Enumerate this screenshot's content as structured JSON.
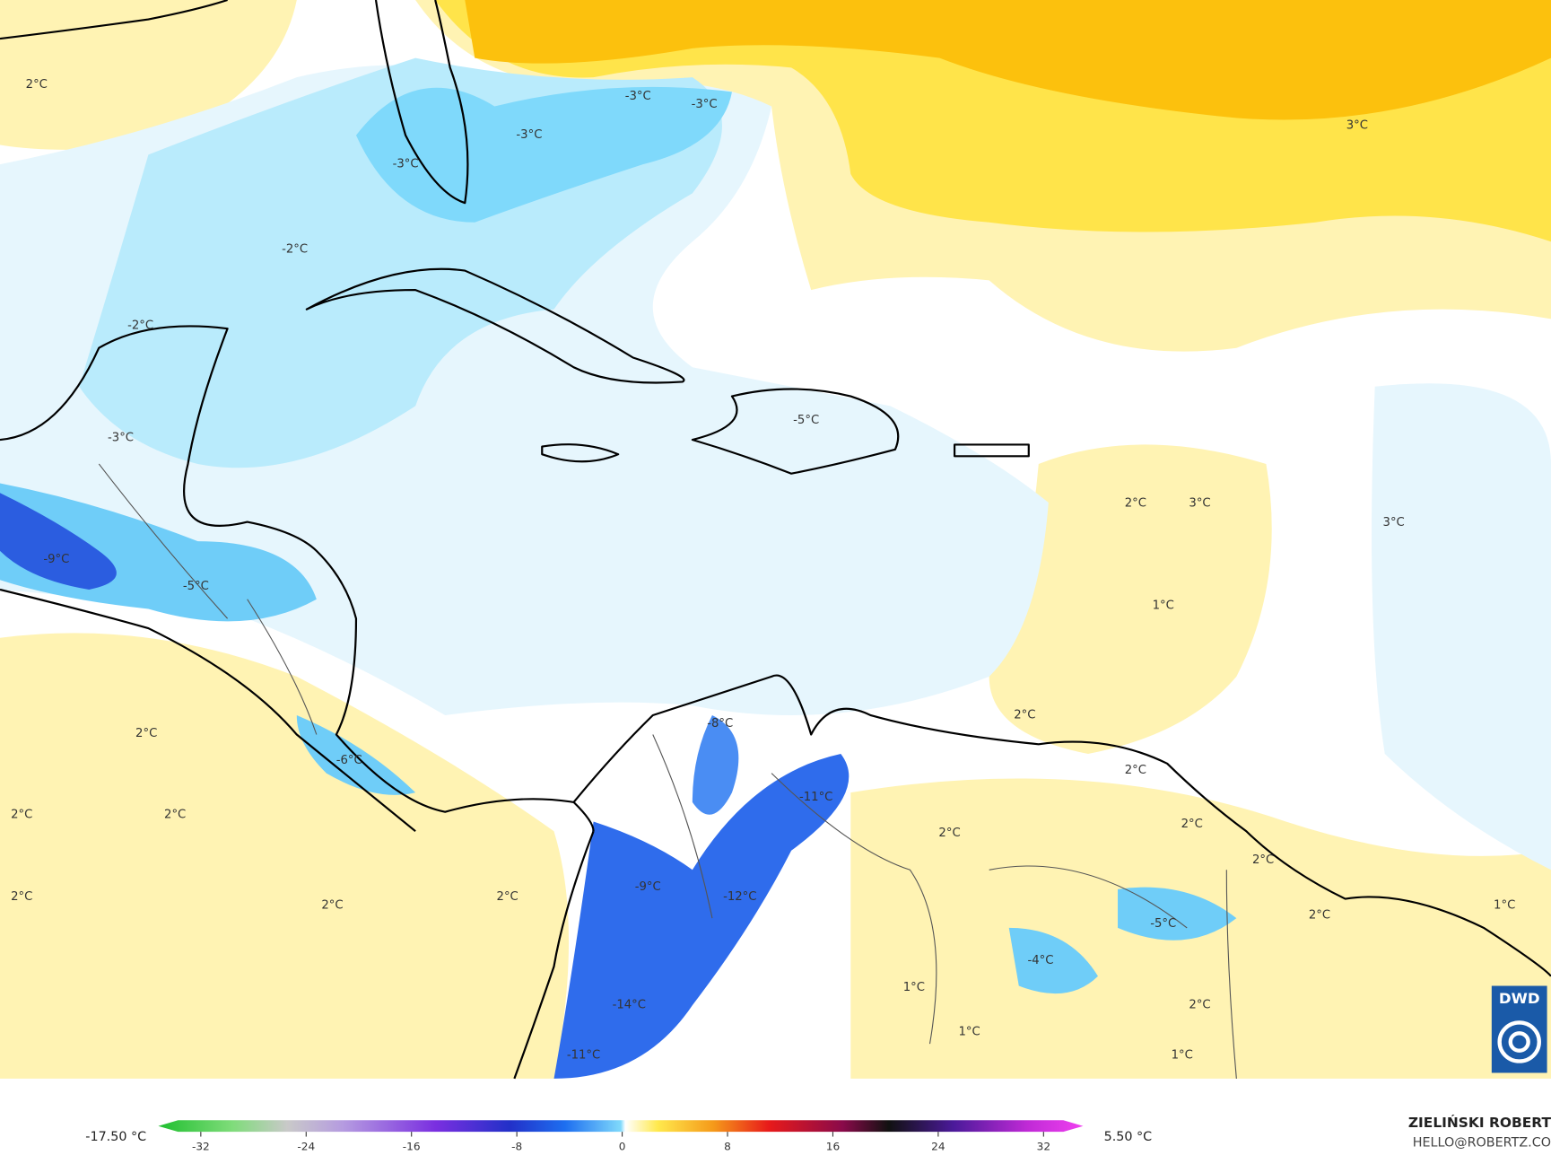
{
  "map": {
    "labels": [
      "2°C",
      "-3°C",
      "-3°C",
      "-3°C",
      "-3°C",
      "3°C",
      "-2°C",
      "-2°C",
      "-3°C",
      "-5°C",
      "2°C",
      "3°C",
      "3°C",
      "-9°C",
      "-5°C",
      "1°C",
      "-8°C",
      "2°C",
      "2°C",
      "-6°C",
      "2°C",
      "-11°C",
      "2°C",
      "2°C",
      "2°C",
      "2°C",
      "2°C",
      "-9°C",
      "2°C",
      "2°C",
      "2°C",
      "-12°C",
      "1°C",
      "2°C",
      "-5°C",
      "-4°C",
      "1°C",
      "-14°C",
      "2°C",
      "1°C",
      "1°C",
      "-11°C"
    ]
  },
  "colorbar": {
    "min_label": "-17.50 °C",
    "max_label": "5.50 °C",
    "ticks": [
      -32,
      -24,
      -16,
      -8,
      0,
      8,
      16,
      24,
      32
    ]
  },
  "credits": {
    "author": "ZIELIŃSKI ROBERT",
    "contact": "HELLO@ROBERTZ.CO",
    "logo": "DWD"
  }
}
